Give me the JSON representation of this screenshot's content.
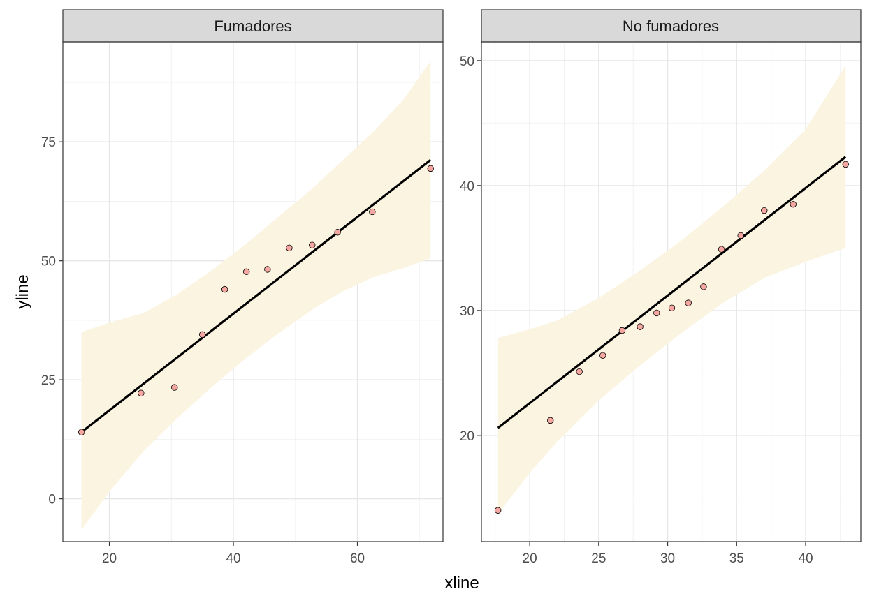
{
  "chart_data": {
    "type": "scatter",
    "xlabel": "xline",
    "ylabel": "yline",
    "grid": true,
    "theme_colors": {
      "point_fill": "#f4a6a0",
      "point_stroke": "#000000",
      "ribbon": "#faf4e1",
      "line": "#000000",
      "strip_bg": "#d9d9d9",
      "grid_major": "#e6e6e6",
      "grid_minor": "#f2f2f2"
    },
    "panels": [
      {
        "strip": "Fumadores",
        "xlim": [
          12.5,
          73.8
        ],
        "ylim": [
          -9.0,
          96.0
        ],
        "x_ticks": [
          20,
          40,
          60
        ],
        "y_ticks": [
          0,
          25,
          50,
          75
        ],
        "points": [
          [
            15.5,
            14.0
          ],
          [
            25.1,
            22.2
          ],
          [
            30.5,
            23.4
          ],
          [
            35.0,
            34.5
          ],
          [
            38.6,
            44.0
          ],
          [
            42.1,
            47.7
          ],
          [
            45.5,
            48.2
          ],
          [
            49.0,
            52.7
          ],
          [
            52.7,
            53.3
          ],
          [
            56.8,
            56.0
          ],
          [
            62.4,
            60.3
          ],
          [
            71.8,
            69.4
          ]
        ],
        "fit": {
          "x0": 15.5,
          "y0": 14.0,
          "x1": 71.8,
          "y1": 71.2
        },
        "ribbon": [
          {
            "x": 15.5,
            "lo": -6.5,
            "hi": 35.0
          },
          {
            "x": 20.0,
            "lo": 1.5,
            "hi": 37.0
          },
          {
            "x": 25.5,
            "lo": 10.0,
            "hi": 39.0
          },
          {
            "x": 31.0,
            "lo": 17.0,
            "hi": 43.0
          },
          {
            "x": 36.5,
            "lo": 23.5,
            "hi": 48.0
          },
          {
            "x": 42.0,
            "lo": 29.5,
            "hi": 53.5
          },
          {
            "x": 47.5,
            "lo": 35.0,
            "hi": 59.5
          },
          {
            "x": 53.0,
            "lo": 40.0,
            "hi": 65.5
          },
          {
            "x": 57.5,
            "lo": 43.5,
            "hi": 71.0
          },
          {
            "x": 62.5,
            "lo": 46.5,
            "hi": 77.0
          },
          {
            "x": 67.5,
            "lo": 48.5,
            "hi": 84.0
          },
          {
            "x": 71.8,
            "lo": 50.5,
            "hi": 92.0
          }
        ]
      },
      {
        "strip": "No fumadores",
        "xlim": [
          16.5,
          44.0
        ],
        "ylim": [
          11.5,
          51.5
        ],
        "x_ticks": [
          20,
          25,
          30,
          35,
          40
        ],
        "y_ticks": [
          20,
          30,
          40,
          50
        ],
        "points": [
          [
            17.7,
            14.0
          ],
          [
            21.5,
            21.2
          ],
          [
            23.6,
            25.1
          ],
          [
            25.3,
            26.4
          ],
          [
            26.7,
            28.4
          ],
          [
            28.0,
            28.7
          ],
          [
            29.2,
            29.8
          ],
          [
            30.3,
            30.2
          ],
          [
            31.5,
            30.6
          ],
          [
            32.6,
            31.9
          ],
          [
            33.9,
            34.9
          ],
          [
            35.3,
            36.0
          ],
          [
            37.0,
            38.0
          ],
          [
            39.1,
            38.5
          ],
          [
            42.9,
            41.7
          ]
        ],
        "fit": {
          "x0": 17.7,
          "y0": 20.6,
          "x1": 42.9,
          "y1": 42.3
        },
        "ribbon": [
          {
            "x": 17.7,
            "lo": 13.7,
            "hi": 27.8
          },
          {
            "x": 20.0,
            "lo": 17.0,
            "hi": 28.5
          },
          {
            "x": 22.0,
            "lo": 19.5,
            "hi": 29.2
          },
          {
            "x": 25.0,
            "lo": 22.8,
            "hi": 31.0
          },
          {
            "x": 28.0,
            "lo": 25.6,
            "hi": 33.2
          },
          {
            "x": 31.0,
            "lo": 28.2,
            "hi": 35.6
          },
          {
            "x": 34.0,
            "lo": 30.6,
            "hi": 38.3
          },
          {
            "x": 37.0,
            "lo": 32.6,
            "hi": 41.2
          },
          {
            "x": 40.0,
            "lo": 33.9,
            "hi": 44.5
          },
          {
            "x": 42.9,
            "lo": 35.0,
            "hi": 49.6
          }
        ]
      }
    ]
  }
}
